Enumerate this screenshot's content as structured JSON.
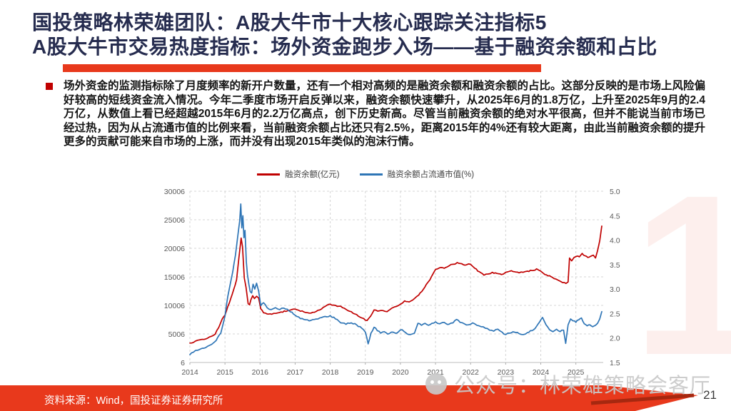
{
  "slide": {
    "title_line1": "国投策略林荣雄团队：A股大牛市十大核心跟踪关注指标5",
    "title_line2": "A股大牛市交易热度指标：场外资金跑步入场——基于融资余额和占比",
    "body_text": "场外资金的监测指标除了月度频率的新开户数量，还有一个相对高频的是融资余额和融资余额的占比。这部分反映的是市场上风险偏好较高的短线资金流入情况。今年二季度市场开启反弹以来，融资余额快速攀升，从2025年6月的1.8万亿，上升至2025年9月的2.4万亿，从数值上看已经超越2015年6月的2.2万亿高点，创下历史新高。尽管当前融资余额的绝对水平很高，但并不能说当前市场已经过热，因为从占流通市值的比例来看，当前融资余额占比还只有2.5%，距离2015年的4%还有较大距离，由此当前融资余额的提升更多的贡献可能来自市场的上涨，而并没有出现2015年类似的泡沫行情。",
    "footer_source": "资料来源：Wind，国投证券证券研究所",
    "watermark": "公众号：林荣雄策略会客厅",
    "page_number": "21",
    "decorative_numeral": "1"
  },
  "colors": {
    "accent_red": "#E8391C",
    "accent_red_dark": "#A62810",
    "title_navy": "#262C4F",
    "series_red": "#C00000",
    "series_blue": "#2E75B6"
  },
  "chart_data": {
    "type": "line",
    "title": "",
    "legend_position": "top-center",
    "grid": "dashed",
    "x_ticks": [
      "2014",
      "2015",
      "2016",
      "2017",
      "2018",
      "2019",
      "2020",
      "2021",
      "2022",
      "2023",
      "2024",
      "2025"
    ],
    "x_range": [
      2014,
      2025.78
    ],
    "left_axis": {
      "min": 6,
      "max": 30006,
      "tick_values": [
        30006,
        25006,
        20006,
        15006,
        10006,
        5006,
        6
      ],
      "tick_labels": [
        "30006",
        "25006",
        "20006",
        "15006",
        "10006",
        "5006",
        "6"
      ]
    },
    "right_axis": {
      "min": 1.5,
      "max": 5.0,
      "tick_values": [
        5.0,
        4.5,
        4.0,
        3.5,
        3.0,
        2.5,
        2.0,
        1.5
      ],
      "tick_labels": [
        "5.0",
        "4.5",
        "4.0",
        "3.5",
        "3.0",
        "2.5",
        "2.0",
        "1.5"
      ]
    },
    "legend": [
      {
        "name": "融资余额(亿元)",
        "color": "#C00000",
        "axis": "left"
      },
      {
        "name": "融资余额占流通市值(%)",
        "color": "#2E75B6",
        "axis": "right"
      }
    ],
    "series": [
      {
        "name": "融资余额(亿元)",
        "axis": "left",
        "color": "#C00000",
        "points": [
          [
            2014.0,
            3400
          ],
          [
            2014.1,
            3520
          ],
          [
            2014.22,
            3900
          ],
          [
            2014.35,
            4050
          ],
          [
            2014.5,
            4250
          ],
          [
            2014.62,
            4600
          ],
          [
            2014.72,
            4950
          ],
          [
            2014.82,
            6100
          ],
          [
            2014.92,
            7600
          ],
          [
            2015.0,
            8300
          ],
          [
            2015.08,
            9800
          ],
          [
            2015.17,
            11300
          ],
          [
            2015.25,
            12800
          ],
          [
            2015.33,
            14500
          ],
          [
            2015.4,
            18500
          ],
          [
            2015.46,
            21800
          ],
          [
            2015.5,
            20300
          ],
          [
            2015.55,
            14800
          ],
          [
            2015.6,
            13200
          ],
          [
            2015.66,
            10300
          ],
          [
            2015.7,
            10100
          ],
          [
            2015.74,
            11000
          ],
          [
            2015.79,
            11700
          ],
          [
            2015.84,
            11200
          ],
          [
            2015.9,
            11600
          ],
          [
            2015.96,
            11300
          ],
          [
            2016.02,
            9400
          ],
          [
            2016.1,
            8700
          ],
          [
            2016.2,
            8500
          ],
          [
            2016.33,
            8450
          ],
          [
            2016.45,
            8600
          ],
          [
            2016.6,
            8850
          ],
          [
            2016.78,
            9050
          ],
          [
            2016.95,
            9350
          ],
          [
            2017.1,
            9150
          ],
          [
            2017.25,
            8850
          ],
          [
            2017.4,
            8650
          ],
          [
            2017.55,
            8800
          ],
          [
            2017.7,
            9200
          ],
          [
            2017.85,
            9800
          ],
          [
            2018.0,
            10200
          ],
          [
            2018.15,
            10000
          ],
          [
            2018.3,
            9850
          ],
          [
            2018.45,
            9300
          ],
          [
            2018.6,
            8900
          ],
          [
            2018.75,
            8400
          ],
          [
            2018.9,
            7800
          ],
          [
            2019.05,
            7350
          ],
          [
            2019.15,
            8100
          ],
          [
            2019.25,
            9200
          ],
          [
            2019.35,
            9000
          ],
          [
            2019.5,
            9100
          ],
          [
            2019.62,
            8900
          ],
          [
            2019.75,
            9500
          ],
          [
            2019.88,
            9800
          ],
          [
            2020.0,
            10200
          ],
          [
            2020.12,
            10800
          ],
          [
            2020.25,
            10600
          ],
          [
            2020.4,
            11200
          ],
          [
            2020.52,
            11800
          ],
          [
            2020.65,
            12800
          ],
          [
            2020.78,
            14000
          ],
          [
            2020.9,
            15200
          ],
          [
            2021.0,
            16300
          ],
          [
            2021.12,
            16600
          ],
          [
            2021.25,
            16500
          ],
          [
            2021.38,
            16900
          ],
          [
            2021.5,
            17200
          ],
          [
            2021.62,
            17500
          ],
          [
            2021.75,
            17300
          ],
          [
            2021.88,
            17100
          ],
          [
            2022.0,
            17200
          ],
          [
            2022.12,
            16500
          ],
          [
            2022.25,
            15900
          ],
          [
            2022.38,
            15300
          ],
          [
            2022.5,
            15500
          ],
          [
            2022.62,
            15800
          ],
          [
            2022.75,
            15600
          ],
          [
            2022.88,
            15400
          ],
          [
            2023.0,
            15800
          ],
          [
            2023.12,
            16000
          ],
          [
            2023.25,
            15900
          ],
          [
            2023.38,
            15700
          ],
          [
            2023.5,
            15800
          ],
          [
            2023.62,
            16000
          ],
          [
            2023.75,
            16100
          ],
          [
            2023.88,
            16400
          ],
          [
            2024.0,
            16000
          ],
          [
            2024.12,
            15400
          ],
          [
            2024.25,
            15200
          ],
          [
            2024.38,
            14700
          ],
          [
            2024.5,
            14400
          ],
          [
            2024.62,
            14000
          ],
          [
            2024.72,
            13850
          ],
          [
            2024.78,
            14100
          ],
          [
            2024.82,
            18300
          ],
          [
            2024.88,
            17800
          ],
          [
            2024.95,
            18400
          ],
          [
            2025.02,
            18600
          ],
          [
            2025.1,
            18500
          ],
          [
            2025.18,
            19100
          ],
          [
            2025.26,
            18700
          ],
          [
            2025.34,
            18400
          ],
          [
            2025.42,
            18600
          ],
          [
            2025.5,
            18800
          ],
          [
            2025.56,
            18300
          ],
          [
            2025.62,
            19600
          ],
          [
            2025.68,
            21300
          ],
          [
            2025.74,
            23900
          ]
        ]
      },
      {
        "name": "融资余额占流通市值(%)",
        "axis": "right",
        "color": "#2E75B6",
        "points": [
          [
            2014.0,
            1.66
          ],
          [
            2014.1,
            1.71
          ],
          [
            2014.22,
            1.75
          ],
          [
            2014.35,
            1.79
          ],
          [
            2014.5,
            1.83
          ],
          [
            2014.62,
            1.87
          ],
          [
            2014.75,
            1.95
          ],
          [
            2014.88,
            2.1
          ],
          [
            2015.0,
            2.45
          ],
          [
            2015.08,
            2.85
          ],
          [
            2015.15,
            3.1
          ],
          [
            2015.22,
            3.35
          ],
          [
            2015.3,
            3.7
          ],
          [
            2015.36,
            4.05
          ],
          [
            2015.42,
            4.4
          ],
          [
            2015.45,
            4.74
          ],
          [
            2015.48,
            4.25
          ],
          [
            2015.51,
            4.5
          ],
          [
            2015.54,
            4.05
          ],
          [
            2015.57,
            4.2
          ],
          [
            2015.61,
            3.55
          ],
          [
            2015.64,
            3.3
          ],
          [
            2015.68,
            3.1
          ],
          [
            2015.72,
            2.95
          ],
          [
            2015.76,
            2.92
          ],
          [
            2015.8,
            3.1
          ],
          [
            2015.85,
            3.0
          ],
          [
            2015.9,
            3.12
          ],
          [
            2015.96,
            2.96
          ],
          [
            2016.02,
            2.66
          ],
          [
            2016.1,
            2.72
          ],
          [
            2016.2,
            2.62
          ],
          [
            2016.32,
            2.58
          ],
          [
            2016.44,
            2.62
          ],
          [
            2016.56,
            2.58
          ],
          [
            2016.68,
            2.61
          ],
          [
            2016.82,
            2.56
          ],
          [
            2016.95,
            2.49
          ],
          [
            2017.1,
            2.43
          ],
          [
            2017.25,
            2.38
          ],
          [
            2017.4,
            2.35
          ],
          [
            2017.55,
            2.38
          ],
          [
            2017.7,
            2.41
          ],
          [
            2017.85,
            2.44
          ],
          [
            2018.0,
            2.46
          ],
          [
            2018.15,
            2.39
          ],
          [
            2018.3,
            2.31
          ],
          [
            2018.45,
            2.28
          ],
          [
            2018.6,
            2.31
          ],
          [
            2018.75,
            2.27
          ],
          [
            2018.9,
            2.2
          ],
          [
            2019.0,
            2.12
          ],
          [
            2019.08,
            1.88
          ],
          [
            2019.16,
            2.1
          ],
          [
            2019.25,
            2.22
          ],
          [
            2019.34,
            2.15
          ],
          [
            2019.44,
            2.1
          ],
          [
            2019.54,
            2.13
          ],
          [
            2019.64,
            2.08
          ],
          [
            2019.74,
            2.12
          ],
          [
            2019.85,
            2.1
          ],
          [
            2019.95,
            2.13
          ],
          [
            2020.05,
            2.17
          ],
          [
            2020.15,
            2.11
          ],
          [
            2020.28,
            2.07
          ],
          [
            2020.4,
            2.1
          ],
          [
            2020.5,
            2.3
          ],
          [
            2020.6,
            2.26
          ],
          [
            2020.7,
            2.3
          ],
          [
            2020.8,
            2.26
          ],
          [
            2020.9,
            2.3
          ],
          [
            2021.0,
            2.33
          ],
          [
            2021.12,
            2.29
          ],
          [
            2021.25,
            2.32
          ],
          [
            2021.38,
            2.28
          ],
          [
            2021.5,
            2.31
          ],
          [
            2021.6,
            2.38
          ],
          [
            2021.7,
            2.32
          ],
          [
            2021.82,
            2.29
          ],
          [
            2021.94,
            2.27
          ],
          [
            2022.06,
            2.31
          ],
          [
            2022.18,
            2.26
          ],
          [
            2022.3,
            2.23
          ],
          [
            2022.42,
            2.2
          ],
          [
            2022.54,
            2.16
          ],
          [
            2022.66,
            2.14
          ],
          [
            2022.78,
            2.18
          ],
          [
            2022.9,
            2.12
          ],
          [
            2023.0,
            2.07
          ],
          [
            2023.12,
            2.1
          ],
          [
            2023.25,
            2.12
          ],
          [
            2023.38,
            2.09
          ],
          [
            2023.5,
            2.07
          ],
          [
            2023.62,
            2.11
          ],
          [
            2023.75,
            2.15
          ],
          [
            2023.88,
            2.24
          ],
          [
            2023.96,
            2.32
          ],
          [
            2024.05,
            2.42
          ],
          [
            2024.15,
            2.27
          ],
          [
            2024.25,
            2.17
          ],
          [
            2024.35,
            2.13
          ],
          [
            2024.45,
            2.18
          ],
          [
            2024.55,
            2.13
          ],
          [
            2024.65,
            2.16
          ],
          [
            2024.71,
            1.89
          ],
          [
            2024.78,
            2.27
          ],
          [
            2024.85,
            2.39
          ],
          [
            2024.92,
            2.35
          ],
          [
            2025.0,
            2.32
          ],
          [
            2025.08,
            2.37
          ],
          [
            2025.16,
            2.41
          ],
          [
            2025.24,
            2.29
          ],
          [
            2025.32,
            2.25
          ],
          [
            2025.4,
            2.27
          ],
          [
            2025.48,
            2.23
          ],
          [
            2025.56,
            2.26
          ],
          [
            2025.62,
            2.3
          ],
          [
            2025.68,
            2.39
          ],
          [
            2025.74,
            2.54
          ]
        ]
      }
    ]
  }
}
